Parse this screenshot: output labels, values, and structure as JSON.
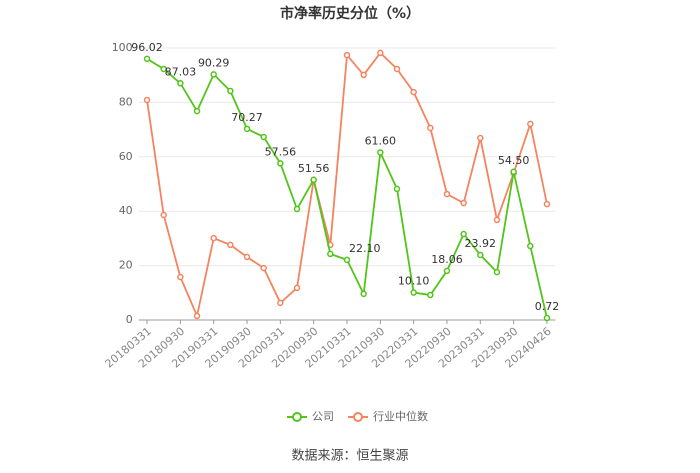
{
  "chart_data": {
    "type": "line",
    "title": "市净率历史分位（%）",
    "source": "数据来源：恒生聚源",
    "categories": [
      "20180331",
      null,
      "20180930",
      null,
      "20190331",
      null,
      "20190930",
      null,
      "20200331",
      null,
      "20200930",
      null,
      "20210331",
      null,
      "20210930",
      null,
      "20220331",
      null,
      "20220930",
      null,
      "20230331",
      null,
      "20230930",
      null,
      "20240426"
    ],
    "series": [
      {
        "name": "公司",
        "color": "#52c41a",
        "values": [
          96.02,
          92.3,
          87.03,
          76.8,
          90.29,
          84.2,
          70.27,
          67.3,
          57.56,
          40.8,
          51.56,
          24.3,
          22.1,
          9.6,
          61.6,
          48.2,
          10.1,
          9.2,
          18.06,
          31.6,
          23.92,
          17.6,
          54.5,
          27.2,
          0.72
        ],
        "value_labels": [
          "96.02",
          null,
          "87.03",
          null,
          "90.29",
          null,
          "70.27",
          null,
          "57.56",
          null,
          "51.56",
          null,
          "22.10",
          null,
          "61.60",
          null,
          "10.10",
          null,
          "18.06",
          null,
          "23.92",
          null,
          "54.50",
          null,
          "0.72"
        ]
      },
      {
        "name": "行业中位数",
        "color": "#f4845f",
        "values": [
          80.9,
          38.6,
          15.8,
          1.5,
          30.1,
          27.6,
          23.2,
          19.1,
          6.3,
          11.8,
          51.5,
          27.6,
          97.4,
          90.1,
          98.2,
          92.3,
          83.8,
          70.6,
          46.3,
          43.0,
          66.9,
          36.8,
          54.0,
          72.1,
          42.6
        ]
      }
    ],
    "ylim": [
      0,
      100
    ],
    "yticks": [
      0,
      20,
      40,
      60,
      80,
      100
    ],
    "grid": true,
    "legend": "bottom"
  }
}
